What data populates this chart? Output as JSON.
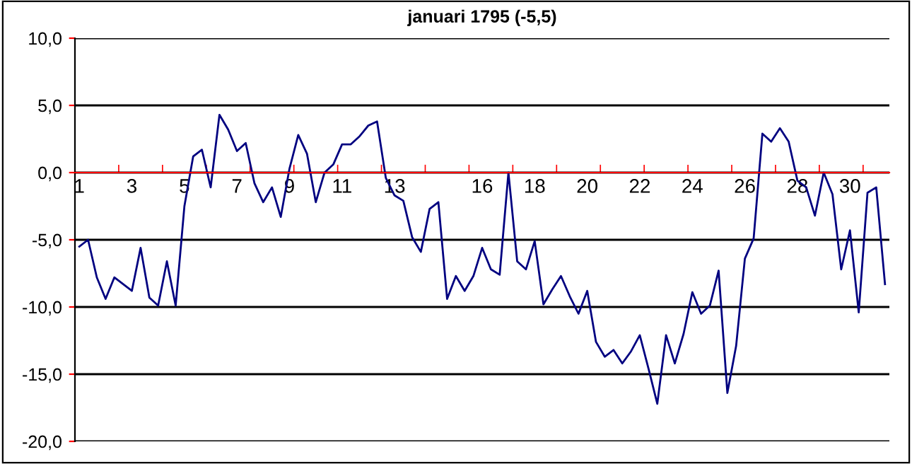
{
  "chart_data": {
    "type": "line",
    "title": "januari 1795 (-5,5)",
    "categories": [
      "1",
      null,
      null,
      null,
      null,
      null,
      "3",
      null,
      null,
      null,
      null,
      null,
      "5",
      null,
      null,
      null,
      null,
      null,
      "7",
      null,
      null,
      null,
      null,
      null,
      "9",
      null,
      null,
      null,
      null,
      null,
      "11",
      null,
      null,
      null,
      null,
      null,
      "13",
      null,
      null,
      null,
      null,
      null,
      null,
      null,
      null,
      null,
      "16",
      null,
      null,
      null,
      null,
      null,
      "18",
      null,
      null,
      null,
      null,
      null,
      "20",
      null,
      null,
      null,
      null,
      null,
      "22",
      null,
      null,
      null,
      null,
      null,
      "24",
      null,
      null,
      null,
      null,
      null,
      "26",
      null,
      null,
      null,
      null,
      null,
      "28",
      null,
      null,
      null,
      null,
      null,
      "30",
      null,
      null,
      null,
      null
    ],
    "series": [
      {
        "color": "#000080",
        "values": [
          -5.5,
          -5.0,
          -7.8,
          -9.4,
          -7.8,
          -8.3,
          -8.8,
          -5.6,
          -9.3,
          -9.9,
          -6.6,
          -9.9,
          -2.5,
          1.2,
          1.7,
          -1.1,
          4.3,
          3.2,
          1.6,
          2.2,
          -0.8,
          -2.2,
          -1.1,
          -3.3,
          0.3,
          2.8,
          1.4,
          -2.2,
          0.0,
          0.6,
          2.1,
          2.1,
          2.7,
          3.5,
          3.8,
          -0.4,
          -1.7,
          -2.1,
          -4.8,
          -5.9,
          -2.7,
          -2.2,
          -9.4,
          -7.7,
          -8.8,
          -7.7,
          -5.6,
          -7.2,
          -7.6,
          0.0,
          -6.6,
          -7.2,
          -5.1,
          -9.8,
          -8.7,
          -7.7,
          -9.2,
          -10.5,
          -8.8,
          -12.6,
          -13.7,
          -13.2,
          -14.2,
          -13.3,
          -12.1,
          -14.6,
          -17.2,
          -12.1,
          -14.2,
          -12.0,
          -8.9,
          -10.5,
          -9.9,
          -7.3,
          -16.4,
          -12.9,
          -6.4,
          -4.9,
          2.9,
          2.3,
          3.3,
          2.3,
          -0.6,
          -1.1,
          -3.2,
          0.0,
          -1.6,
          -7.2,
          -4.3,
          -10.4,
          -1.5,
          -1.1,
          -8.3
        ]
      }
    ],
    "ylim": [
      -20,
      10
    ],
    "yticks": [
      {
        "value": -20,
        "label": "-20,0"
      },
      {
        "value": -15,
        "label": "-15,0"
      },
      {
        "value": -10,
        "label": "-10,0"
      },
      {
        "value": -5,
        "label": "-5,0"
      },
      {
        "value": 0,
        "label": "0,0"
      },
      {
        "value": 5,
        "label": "5,0"
      },
      {
        "value": 10,
        "label": "10,0"
      }
    ],
    "grid": "y",
    "legend": false,
    "marker": "none",
    "line_style": "solid"
  }
}
